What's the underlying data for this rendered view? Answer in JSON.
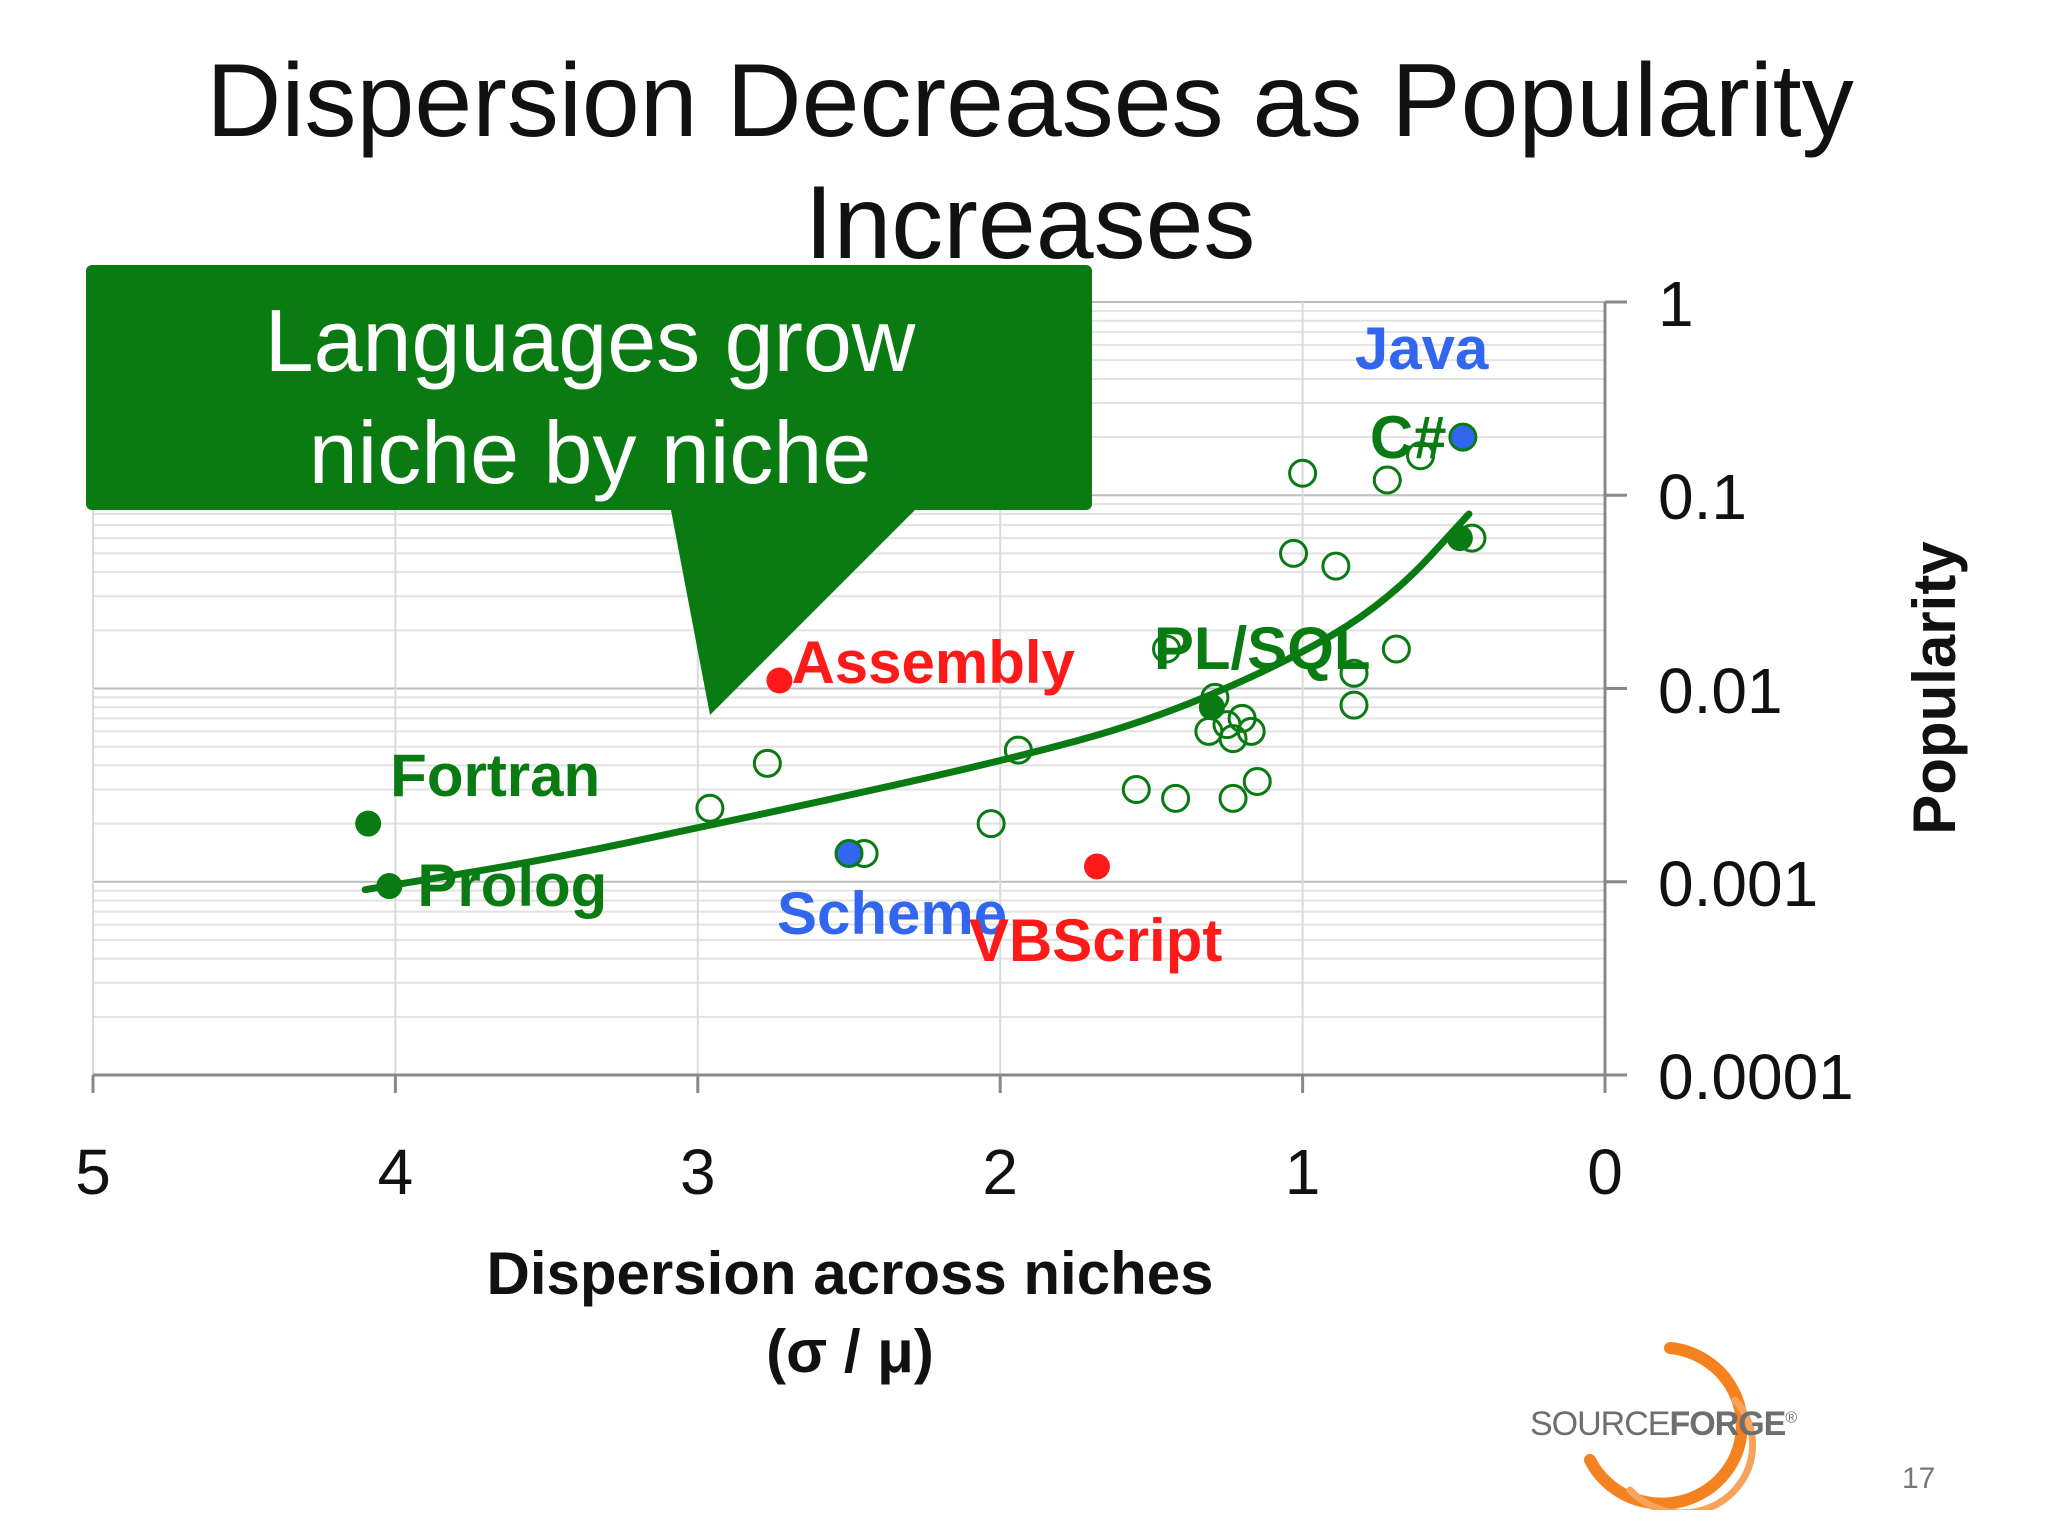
{
  "slide": {
    "title": "Dispersion Decreases as Popularity Increases",
    "page_number": "17"
  },
  "callout": {
    "line1": "Languages grow",
    "line2": "niche by niche"
  },
  "logo": {
    "text_plain": "SOURCE",
    "text_bold": "FORGE",
    "mark": "®"
  },
  "colors": {
    "trend": "#0a7a12",
    "callout_bg": "#0a7a12",
    "highlight_red": "#ff1a1a",
    "highlight_blue": "#3366ee",
    "logo_orange": "#f58220"
  },
  "chart_data": {
    "type": "scatter",
    "title": "Dispersion Decreases as Popularity Increases",
    "xlabel": "Dispersion across niches",
    "xlabel_sub": "(σ / μ)",
    "ylabel": "Popularity",
    "x_axis": {
      "range": [
        5,
        0
      ],
      "reversed": true,
      "ticks": [
        5,
        4,
        3,
        2,
        1,
        0
      ],
      "tick_labels": [
        "5",
        "4",
        "3",
        "2",
        "1",
        "0"
      ]
    },
    "y_axis": {
      "scale": "log",
      "range": [
        0.0001,
        1
      ],
      "ticks": [
        1,
        0.1,
        0.01,
        0.001,
        0.0001
      ],
      "tick_labels": [
        "1",
        "0.1",
        "0.01",
        "0.001",
        "0.0001"
      ],
      "position": "right"
    },
    "grid": true,
    "highlighted": [
      {
        "name": "Java",
        "x": 0.47,
        "y": 0.2,
        "color": "#3366ee"
      },
      {
        "name": "C#",
        "x": 0.48,
        "y": 0.06,
        "color": "#0a7a12"
      },
      {
        "name": "PL/SQL",
        "x": 1.3,
        "y": 0.008,
        "color": "#0a7a12"
      },
      {
        "name": "Assembly",
        "x": 2.73,
        "y": 0.011,
        "color": "#ff1a1a"
      },
      {
        "name": "Fortran",
        "x": 4.09,
        "y": 0.002,
        "color": "#0a7a12"
      },
      {
        "name": "Prolog",
        "x": 4.02,
        "y": 0.00095,
        "color": "#0a7a12"
      },
      {
        "name": "Scheme",
        "x": 2.5,
        "y": 0.0014,
        "color": "#3366ee"
      },
      {
        "name": "VBScript",
        "x": 1.68,
        "y": 0.0012,
        "color": "#ff1a1a"
      }
    ],
    "others": [
      {
        "x": 1.0,
        "y": 0.13
      },
      {
        "x": 0.72,
        "y": 0.12
      },
      {
        "x": 0.61,
        "y": 0.16
      },
      {
        "x": 0.44,
        "y": 0.06
      },
      {
        "x": 1.03,
        "y": 0.05
      },
      {
        "x": 0.89,
        "y": 0.043
      },
      {
        "x": 1.45,
        "y": 0.016
      },
      {
        "x": 0.69,
        "y": 0.016
      },
      {
        "x": 0.83,
        "y": 0.012
      },
      {
        "x": 0.83,
        "y": 0.0082
      },
      {
        "x": 1.29,
        "y": 0.009
      },
      {
        "x": 1.2,
        "y": 0.007
      },
      {
        "x": 1.25,
        "y": 0.0065
      },
      {
        "x": 1.31,
        "y": 0.006
      },
      {
        "x": 1.17,
        "y": 0.006
      },
      {
        "x": 1.23,
        "y": 0.0055
      },
      {
        "x": 1.94,
        "y": 0.0048
      },
      {
        "x": 2.77,
        "y": 0.0041
      },
      {
        "x": 2.96,
        "y": 0.0024
      },
      {
        "x": 1.55,
        "y": 0.003
      },
      {
        "x": 1.42,
        "y": 0.0027
      },
      {
        "x": 1.23,
        "y": 0.0027
      },
      {
        "x": 1.15,
        "y": 0.0033
      },
      {
        "x": 2.03,
        "y": 0.002
      },
      {
        "x": 2.45,
        "y": 0.0014
      }
    ],
    "trendline": [
      {
        "x": 4.1,
        "y": 0.00091
      },
      {
        "x": 3.5,
        "y": 0.0013
      },
      {
        "x": 3.0,
        "y": 0.0019
      },
      {
        "x": 2.5,
        "y": 0.0028
      },
      {
        "x": 2.0,
        "y": 0.0042
      },
      {
        "x": 1.5,
        "y": 0.0068
      },
      {
        "x": 1.0,
        "y": 0.015
      },
      {
        "x": 0.7,
        "y": 0.03
      },
      {
        "x": 0.45,
        "y": 0.08
      }
    ]
  }
}
